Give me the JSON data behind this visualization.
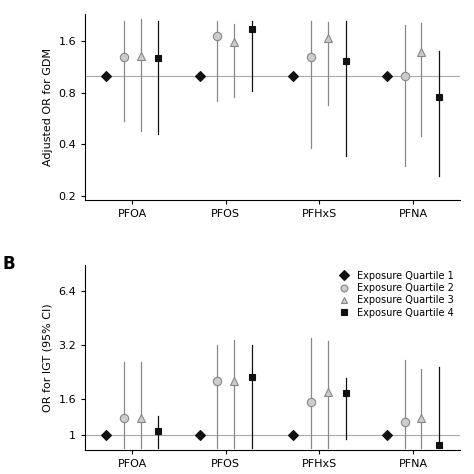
{
  "chemicals": [
    "PFOA",
    "PFOS",
    "PFHxS",
    "PFNA"
  ],
  "reference_line_A": 1.0,
  "reference_line_B": 1.0,
  "panel_A_ylabel": "Adjusted OR for GDM",
  "panel_B_ylabel": "OR for IGT (95% CI)",
  "panel_A_ylim": [
    0.19,
    2.3
  ],
  "panel_B_ylim": [
    0.82,
    9.0
  ],
  "panel_A_yticks": [
    0.2,
    0.4,
    0.8,
    1.6
  ],
  "panel_B_yticks": [
    1.0,
    1.6,
    3.2,
    6.4
  ],
  "quartile_colors": [
    "#111111",
    "#888888",
    "#888888",
    "#111111"
  ],
  "quartile_markers": [
    "D",
    "o",
    "^",
    "s"
  ],
  "quartile_markerfacecolors": [
    "#111111",
    "#cccccc",
    "#cccccc",
    "#111111"
  ],
  "legend_labels": [
    "Exposure Quartile 1",
    "Exposure Quartile 2",
    "Exposure Quartile 3",
    "Exposure Quartile 4"
  ],
  "panel_A_data": {
    "PFOA": {
      "Q1": {
        "or": 1.0,
        "lo": 1.0,
        "hi": 1.0
      },
      "Q2": {
        "or": 1.3,
        "lo": 0.55,
        "hi": 2.1
      },
      "Q3": {
        "or": 1.32,
        "lo": 0.48,
        "hi": 2.15
      },
      "Q4": {
        "or": 1.28,
        "lo": 0.46,
        "hi": 2.1
      }
    },
    "PFOS": {
      "Q1": {
        "or": 1.0,
        "lo": 1.0,
        "hi": 1.0
      },
      "Q2": {
        "or": 1.72,
        "lo": 0.72,
        "hi": 2.1
      },
      "Q3": {
        "or": 1.58,
        "lo": 0.76,
        "hi": 2.02
      },
      "Q4": {
        "or": 1.88,
        "lo": 0.82,
        "hi": 2.1
      }
    },
    "PFHxS": {
      "Q1": {
        "or": 1.0,
        "lo": 1.0,
        "hi": 1.0
      },
      "Q2": {
        "or": 1.3,
        "lo": 0.38,
        "hi": 2.1
      },
      "Q3": {
        "or": 1.68,
        "lo": 0.68,
        "hi": 2.08
      },
      "Q4": {
        "or": 1.22,
        "lo": 0.34,
        "hi": 2.1
      }
    },
    "PFNA": {
      "Q1": {
        "or": 1.0,
        "lo": 1.0,
        "hi": 1.0
      },
      "Q2": {
        "or": 1.0,
        "lo": 0.3,
        "hi": 2.0
      },
      "Q3": {
        "or": 1.38,
        "lo": 0.45,
        "hi": 2.05
      },
      "Q4": {
        "or": 0.76,
        "lo": 0.26,
        "hi": 1.4
      }
    }
  },
  "panel_B_data": {
    "PFOA": {
      "Q1": {
        "or": 1.0,
        "lo": 1.0,
        "hi": 1.0
      },
      "Q2": {
        "or": 1.25,
        "lo": 0.85,
        "hi": 2.55
      },
      "Q3": {
        "or": 1.25,
        "lo": 0.85,
        "hi": 2.58
      },
      "Q4": {
        "or": 1.05,
        "lo": 0.85,
        "hi": 1.28
      }
    },
    "PFOS": {
      "Q1": {
        "or": 1.0,
        "lo": 1.0,
        "hi": 1.0
      },
      "Q2": {
        "or": 2.0,
        "lo": 0.85,
        "hi": 3.2
      },
      "Q3": {
        "or": 2.0,
        "lo": 0.85,
        "hi": 3.4
      },
      "Q4": {
        "or": 2.1,
        "lo": 0.85,
        "hi": 3.2
      }
    },
    "PFHxS": {
      "Q1": {
        "or": 1.0,
        "lo": 1.0,
        "hi": 1.0
      },
      "Q2": {
        "or": 1.52,
        "lo": 0.85,
        "hi": 3.5
      },
      "Q3": {
        "or": 1.75,
        "lo": 0.85,
        "hi": 3.38
      },
      "Q4": {
        "or": 1.72,
        "lo": 0.95,
        "hi": 2.08
      }
    },
    "PFNA": {
      "Q1": {
        "or": 1.0,
        "lo": 1.0,
        "hi": 1.0
      },
      "Q2": {
        "or": 1.18,
        "lo": 0.85,
        "hi": 2.62
      },
      "Q3": {
        "or": 1.25,
        "lo": 0.85,
        "hi": 2.35
      },
      "Q4": {
        "or": 0.88,
        "lo": 0.85,
        "hi": 2.4
      }
    }
  },
  "group_offsets": [
    -0.28,
    -0.09,
    0.09,
    0.28
  ],
  "bg_color": "#ffffff",
  "refline_color": "#aaaaaa",
  "ci_linewidth": 0.9,
  "marker_size_Q1Q4": 5,
  "marker_size_Q2Q3": 6
}
